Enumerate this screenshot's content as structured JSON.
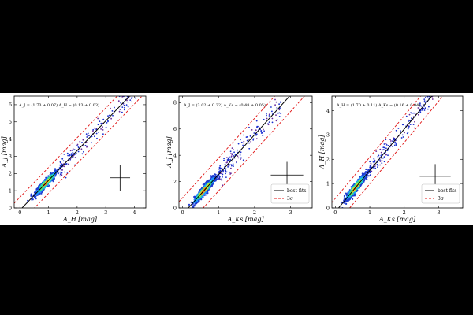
{
  "chart_data": [
    {
      "type": "scatter",
      "relation": "A_J = (1.73 ± 0.07) A_H − (0.13 ± 0.03)",
      "xlabel": "A_H [mag]",
      "ylabel": "A_J [mag]",
      "xlim": [
        -0.2,
        4.4
      ],
      "ylim": [
        0,
        6.5
      ],
      "xticks": [
        "0",
        "1",
        "2",
        "3",
        "4"
      ],
      "yticks": [
        "0",
        "1",
        "2",
        "3",
        "4",
        "5",
        "6"
      ],
      "fit": {
        "slope": 1.73,
        "intercept": -0.13
      },
      "band_offset": 0.75,
      "density_center": [
        0.9,
        1.45
      ],
      "density_spread": [
        0.18,
        0.3
      ],
      "sparse_x_range": [
        1.4,
        4.1
      ],
      "errorbar": {
        "x": 3.5,
        "y": 1.75,
        "xerr": 0.35,
        "yerr": 0.75
      },
      "legend": []
    },
    {
      "type": "scatter",
      "relation": "A_J = (3.02 ± 0.22) A_Ks − (0.48 ± 0.05)",
      "xlabel": "A_Ks [mag]",
      "ylabel": "A_J [mag]",
      "xlim": [
        -0.1,
        3.6
      ],
      "ylim": [
        0,
        8.5
      ],
      "xticks": [
        "0",
        "1",
        "2",
        "3"
      ],
      "yticks": [
        "0",
        "2",
        "4",
        "6",
        "8"
      ],
      "fit": {
        "slope": 3.02,
        "intercept": -0.48
      },
      "band_offset": 1.25,
      "density_center": [
        0.6,
        1.4
      ],
      "density_spread": [
        0.15,
        0.45
      ],
      "sparse_x_range": [
        1.0,
        2.8
      ],
      "errorbar": {
        "x": 2.9,
        "y": 2.5,
        "xerr": 0.45,
        "yerr": 1.0
      },
      "legend": [
        "best-fits",
        "3σ"
      ]
    },
    {
      "type": "scatter",
      "relation": "A_H = (1.70 ± 0.11) A_Ks − (0.16 ± 0.04)",
      "xlabel": "A_Ks [mag]",
      "ylabel": "A_H [mag]",
      "xlim": [
        -0.1,
        3.7
      ],
      "ylim": [
        0,
        4.6
      ],
      "xticks": [
        "0",
        "1",
        "2",
        "3"
      ],
      "yticks": [
        "0",
        "1",
        "2",
        "3",
        "4"
      ],
      "fit": {
        "slope": 1.7,
        "intercept": -0.16
      },
      "band_offset": 0.55,
      "density_center": [
        0.6,
        0.9
      ],
      "density_spread": [
        0.14,
        0.25
      ],
      "sparse_x_range": [
        1.0,
        2.9
      ],
      "errorbar": {
        "x": 2.9,
        "y": 1.3,
        "xerr": 0.45,
        "yerr": 0.5
      },
      "legend": [
        "best-fits",
        "3σ"
      ]
    }
  ]
}
